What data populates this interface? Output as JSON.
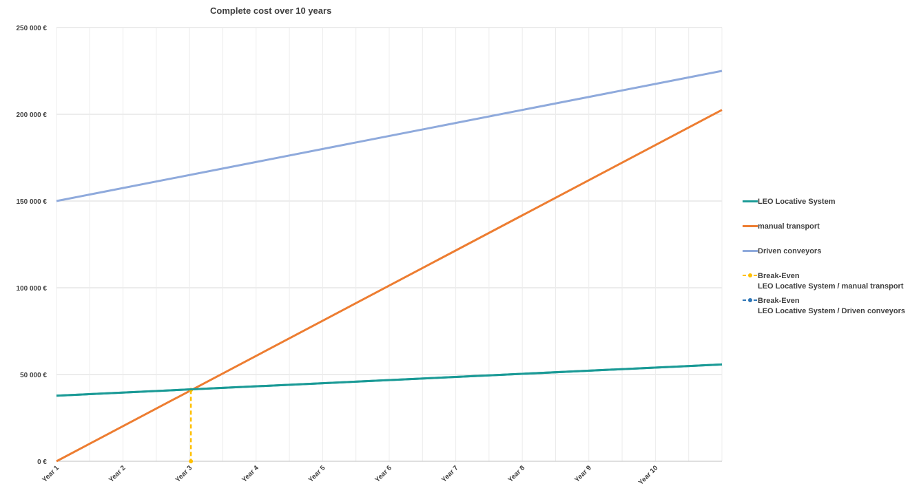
{
  "chart_data": {
    "type": "line",
    "title": "Complete cost over 10 years",
    "xlabel": "",
    "ylabel": "",
    "categories": [
      "Year 1",
      "Year 2",
      "Year 3",
      "Year 4",
      "Year 5",
      "Year 6",
      "Year 7",
      "Year 8",
      "Year 9",
      "Year 10"
    ],
    "ylim": [
      0,
      250000
    ],
    "yticks": [
      0,
      50000,
      100000,
      150000,
      200000,
      250000
    ],
    "ytick_labels": [
      "0 €",
      "50 000 €",
      "100 000 €",
      "150 000 €",
      "200 000 €",
      "250 000 €"
    ],
    "grid": true,
    "legend_position": "right",
    "series": [
      {
        "name": "LEO Locative System",
        "color": "#1a9a96",
        "x": [
          1,
          11
        ],
        "values": [
          37800,
          55800
        ]
      },
      {
        "name": "manual transport",
        "color": "#ed7d31",
        "x": [
          1,
          11
        ],
        "values": [
          0,
          202500
        ]
      },
      {
        "name": "Driven conveyors",
        "color": "#8faadc",
        "x": [
          1,
          11
        ],
        "values": [
          150000,
          225000
        ]
      },
      {
        "name": "Break-Even\nLEO Locative System / manual transport",
        "color": "#ffc000",
        "style": "dashed",
        "x": [
          3.02,
          3.02
        ],
        "values": [
          41100,
          0
        ]
      },
      {
        "name": "Break-Even\nLEO Locative System / Driven conveyors",
        "color": "#2e75b6",
        "style": "dashed",
        "x": [],
        "values": []
      }
    ]
  }
}
